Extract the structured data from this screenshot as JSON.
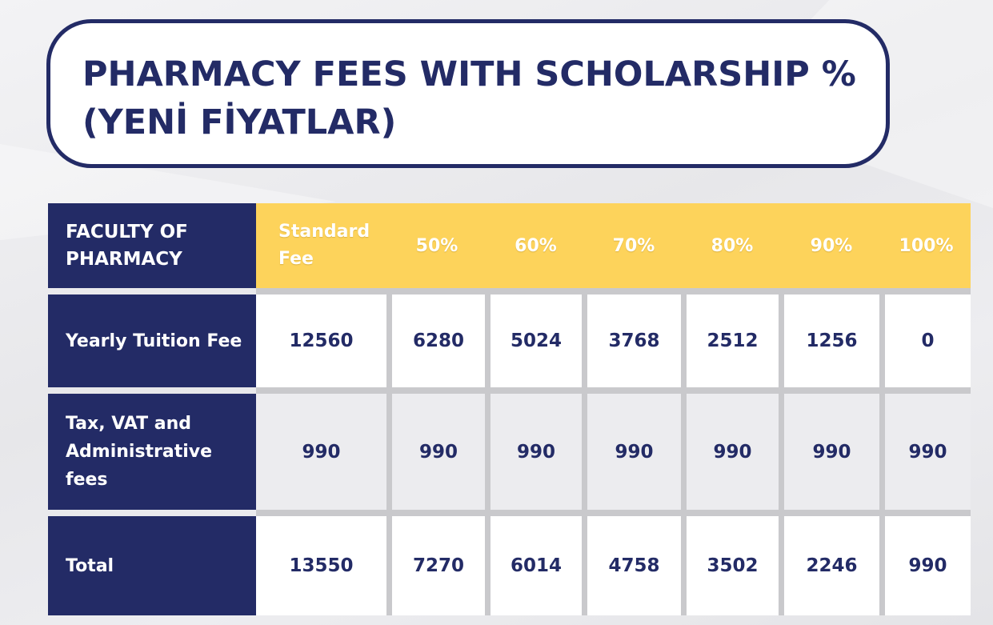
{
  "title": {
    "line1": "PHARMACY FEES WITH SCHOLARSHIP %",
    "line2": "(YENİ FİYATLAR)"
  },
  "table": {
    "corner": [
      "FACULTY OF",
      "PHARMACY"
    ],
    "columns": [
      [
        "Standard",
        "Fee"
      ],
      [
        "50%"
      ],
      [
        "60%"
      ],
      [
        "70%"
      ],
      [
        "80%"
      ],
      [
        "90%"
      ],
      [
        "100%"
      ]
    ],
    "rows": [
      {
        "label": [
          "Yearly Tuition Fee"
        ],
        "values": [
          "12560",
          "6280",
          "5024",
          "3768",
          "2512",
          "1256",
          "0"
        ]
      },
      {
        "label": [
          "Tax, VAT and",
          "Administrative",
          "fees"
        ],
        "values": [
          "990",
          "990",
          "990",
          "990",
          "990",
          "990",
          "990"
        ]
      },
      {
        "label": [
          "Total"
        ],
        "values": [
          "13550",
          "7270",
          "6014",
          "4758",
          "3502",
          "2246",
          "990"
        ]
      }
    ]
  },
  "colors": {
    "navy": "#232b66",
    "yellow": "#fdd35b",
    "row_white": "#ffffff",
    "row_grey": "#ececef",
    "divider": "#c9c9cc"
  }
}
